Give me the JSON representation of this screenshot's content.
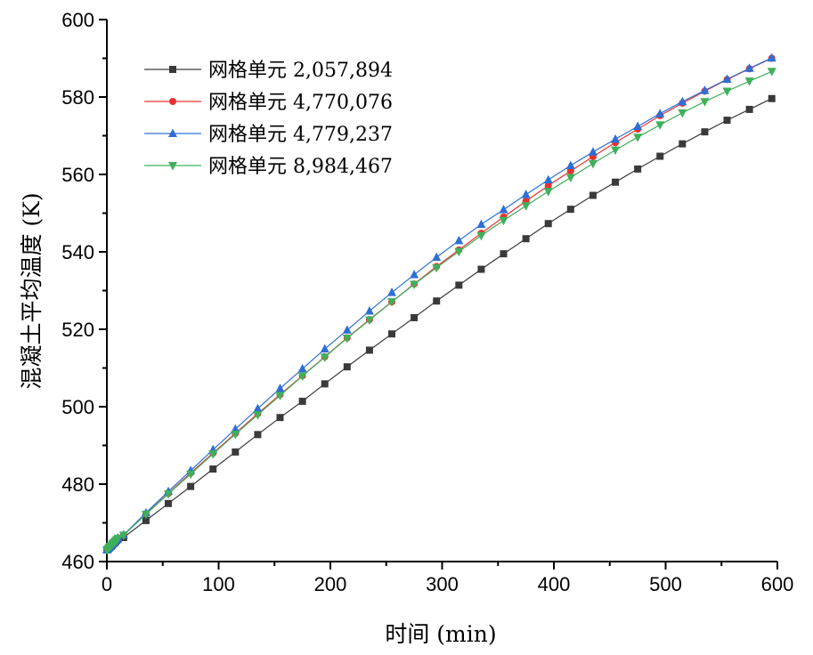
{
  "chart_data": {
    "type": "line",
    "xlabel": "时间 (min)",
    "ylabel": "混凝土平均温度 (K)",
    "xlim": [
      0,
      600
    ],
    "ylim": [
      460,
      600
    ],
    "xticks": [
      0,
      100,
      200,
      300,
      400,
      500,
      600
    ],
    "yticks": [
      460,
      480,
      500,
      520,
      540,
      560,
      580,
      600
    ],
    "grid": false,
    "legend_position": "top-left",
    "series": [
      {
        "name": "网格单元 2,057,894",
        "color": "#3a3a3a",
        "marker": "square",
        "x": [
          0,
          1,
          2,
          3,
          4,
          5,
          6,
          7,
          8,
          9,
          10,
          15,
          35,
          55,
          75,
          95,
          115,
          135,
          155,
          175,
          195,
          215,
          235,
          255,
          275,
          295,
          315,
          335,
          355,
          375,
          395,
          415,
          435,
          455,
          475,
          495,
          515,
          535,
          555,
          575,
          595
        ],
        "y": [
          463.0,
          463.2,
          463.5,
          463.8,
          464.0,
          464.3,
          464.6,
          464.9,
          465.2,
          465.5,
          465.8,
          466.2,
          470.6,
          475.0,
          479.4,
          483.9,
          488.3,
          492.8,
          497.2,
          501.4,
          505.9,
          510.3,
          514.6,
          518.8,
          523.0,
          527.3,
          531.4,
          535.5,
          539.5,
          543.4,
          547.3,
          551.0,
          554.6,
          558.0,
          561.4,
          564.7,
          567.9,
          571.0,
          574.0,
          576.8,
          579.6
        ]
      },
      {
        "name": "网格单元 4,770,076",
        "color": "#e8312f",
        "marker": "circle",
        "x": [
          0,
          1,
          2,
          3,
          4,
          5,
          6,
          7,
          8,
          9,
          10,
          15,
          35,
          55,
          75,
          95,
          115,
          135,
          155,
          175,
          195,
          215,
          235,
          255,
          275,
          295,
          315,
          335,
          355,
          375,
          395,
          415,
          435,
          455,
          475,
          495,
          515,
          535,
          555,
          575,
          595
        ],
        "y": [
          463.0,
          463.3,
          463.6,
          463.9,
          464.2,
          464.5,
          464.8,
          465.1,
          465.4,
          465.7,
          466.0,
          466.8,
          472.3,
          477.6,
          482.9,
          488.0,
          493.1,
          498.2,
          503.1,
          508.0,
          512.9,
          517.8,
          522.5,
          527.1,
          531.7,
          536.2,
          540.5,
          544.8,
          549.0,
          553.1,
          557.1,
          560.9,
          564.6,
          568.2,
          571.7,
          575.2,
          578.4,
          581.5,
          584.5,
          587.3,
          590.0
        ]
      },
      {
        "name": "网格单元 4,779,237",
        "color": "#2e6fd6",
        "marker": "triangle-up",
        "x": [
          0,
          1,
          2,
          3,
          4,
          5,
          6,
          7,
          8,
          9,
          10,
          15,
          35,
          55,
          75,
          95,
          115,
          135,
          155,
          175,
          195,
          215,
          235,
          255,
          275,
          295,
          315,
          335,
          355,
          375,
          395,
          415,
          435,
          455,
          475,
          495,
          515,
          535,
          555,
          575,
          595
        ],
        "y": [
          463.0,
          463.3,
          463.6,
          463.9,
          464.3,
          464.6,
          464.9,
          465.2,
          465.5,
          465.8,
          466.1,
          466.9,
          472.6,
          478.1,
          483.5,
          488.9,
          494.2,
          499.5,
          504.7,
          509.8,
          514.9,
          519.8,
          524.7,
          529.5,
          534.1,
          538.6,
          542.9,
          547.1,
          550.9,
          554.8,
          558.6,
          562.3,
          565.8,
          569.1,
          572.4,
          575.7,
          578.8,
          581.7,
          584.6,
          587.4,
          590.1
        ]
      },
      {
        "name": "网格单元 8,984,467",
        "color": "#3fb05a",
        "marker": "triangle-down",
        "x": [
          0,
          1,
          2,
          3,
          4,
          5,
          6,
          7,
          8,
          9,
          10,
          15,
          35,
          55,
          75,
          95,
          115,
          135,
          155,
          175,
          195,
          215,
          235,
          255,
          275,
          295,
          315,
          335,
          355,
          375,
          395,
          415,
          435,
          455,
          475,
          495,
          515,
          535,
          555,
          575,
          595
        ],
        "y": [
          463.0,
          463.3,
          463.6,
          463.9,
          464.2,
          464.5,
          464.8,
          465.1,
          465.4,
          465.7,
          466.0,
          466.8,
          472.2,
          477.5,
          482.6,
          487.8,
          492.9,
          497.9,
          502.9,
          507.9,
          512.8,
          517.7,
          522.4,
          527.1,
          531.6,
          535.9,
          540.1,
          544.2,
          548.1,
          551.9,
          555.6,
          559.2,
          562.8,
          566.3,
          569.6,
          572.8,
          575.9,
          578.8,
          581.5,
          584.1,
          586.6
        ]
      }
    ]
  }
}
